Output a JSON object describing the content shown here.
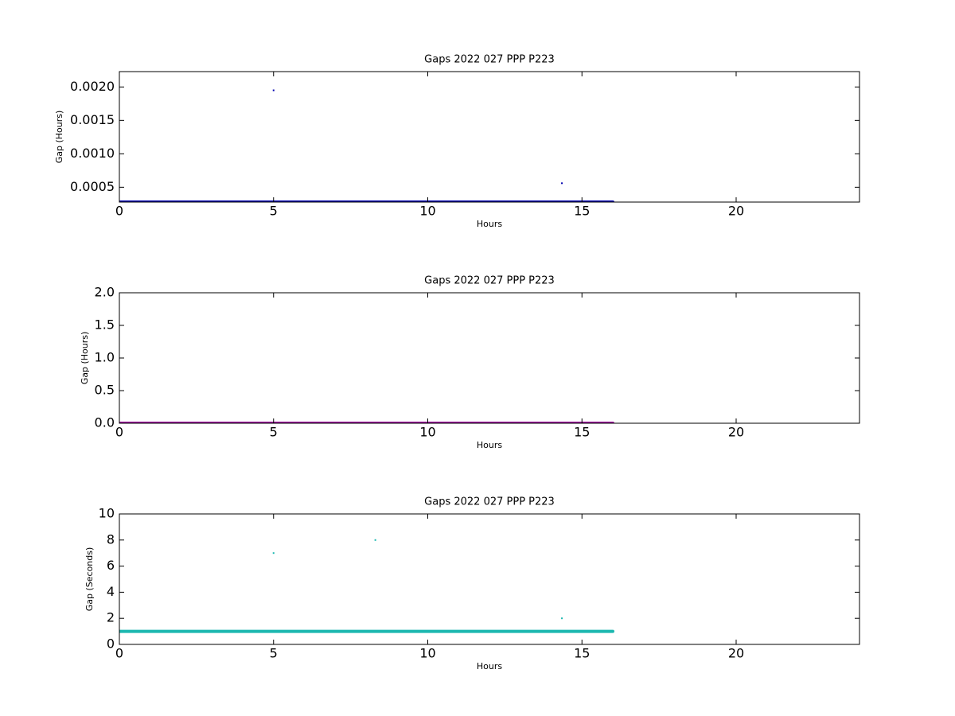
{
  "chart_data": [
    {
      "type": "scatter",
      "title": "Gaps 2022 027 PPP  P223",
      "x_label": "Hours",
      "y_label": "Gap (Hours)",
      "xlim": [
        0,
        24
      ],
      "xticks": [
        0,
        5,
        10,
        15,
        20
      ],
      "ylim": [
        0.000278,
        0.00223
      ],
      "yticks": [
        0.0005,
        {
          "value": 0.001,
          "label": "0.0010"
        },
        0.0015,
        {
          "value": 0.002,
          "label": "0.0020"
        }
      ],
      "series": [
        {
          "mode": "line",
          "color": "#0000b0",
          "x": [
            0,
            16
          ],
          "values": [
            0.000278,
            0.000278
          ]
        },
        {
          "mode": "markers",
          "color": "#0000b0",
          "x": [
            5,
            14.35
          ],
          "values": [
            0.00195,
            0.00056
          ]
        }
      ]
    },
    {
      "type": "scatter",
      "title": "Gaps 2022 027 PPP  P223",
      "x_label": "Hours",
      "y_label": "Gap (Hours)",
      "xlim": [
        0,
        24
      ],
      "xticks": [
        0,
        5,
        10,
        15,
        20
      ],
      "ylim": [
        0,
        2
      ],
      "yticks": [
        {
          "value": 0,
          "label": "0.0"
        },
        0.5,
        {
          "value": 1,
          "label": "1.0"
        },
        1.5,
        {
          "value": 2,
          "label": "2.0"
        }
      ],
      "series": [
        {
          "mode": "line",
          "color": "#a000a0",
          "x": [
            0,
            16
          ],
          "values": [
            0,
            0
          ]
        }
      ]
    },
    {
      "type": "scatter",
      "title": "Gaps 2022 027 PPP  P223",
      "x_label": "Hours",
      "y_label": "Gap (Seconds)",
      "xlim": [
        0,
        24
      ],
      "xticks": [
        0,
        5,
        10,
        15,
        20
      ],
      "ylim": [
        0,
        10
      ],
      "yticks": [
        0,
        2,
        4,
        6,
        8,
        10
      ],
      "series": [
        {
          "mode": "line",
          "color": "#1cb8b0",
          "x": [
            0,
            16
          ],
          "values": [
            1,
            1
          ]
        },
        {
          "mode": "markers",
          "color": "#1cb8b0",
          "x": [
            5,
            8.3,
            14.35
          ],
          "values": [
            7,
            8,
            2
          ]
        }
      ]
    }
  ]
}
